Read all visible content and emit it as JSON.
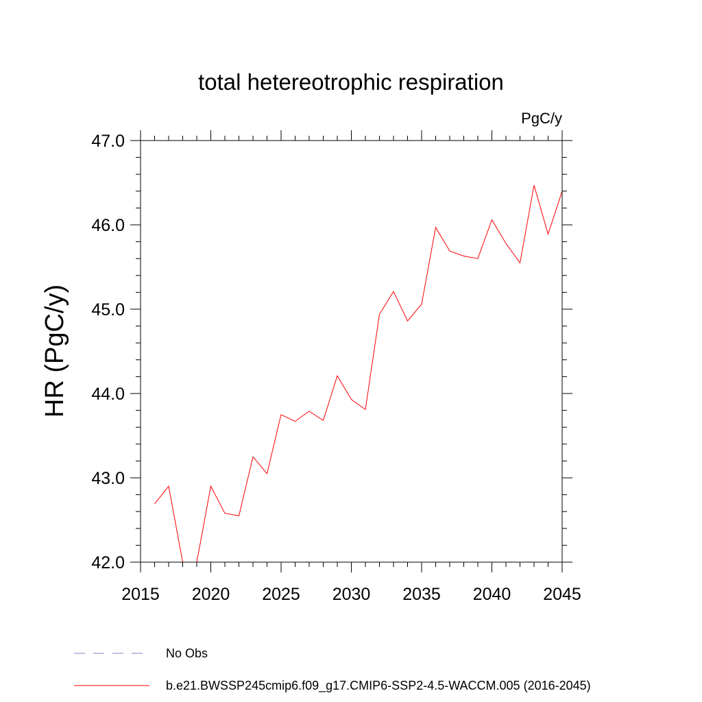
{
  "chart_data": {
    "type": "line",
    "title": "total hetereotrophic respiration",
    "units_label": "PgC/y",
    "xlabel": "",
    "ylabel": "HR  (PgC/y)",
    "xlim": [
      2015,
      2045
    ],
    "ylim": [
      42.0,
      47.0
    ],
    "x_ticks": [
      2015,
      2020,
      2025,
      2030,
      2035,
      2040,
      2045
    ],
    "x_tick_labels": [
      "2015",
      "2020",
      "2025",
      "2030",
      "2035",
      "2040",
      "2045"
    ],
    "y_ticks": [
      42.0,
      43.0,
      44.0,
      45.0,
      46.0,
      47.0
    ],
    "y_tick_labels": [
      "42.0",
      "43.0",
      "44.0",
      "45.0",
      "46.0",
      "47.0"
    ],
    "grid": false,
    "legend_position": "bottom",
    "series": [
      {
        "name": "b.e21.BWSSP245cmip6.f09_g17.CMIP6-SSP2-4.5-WACCM.005 (2016-2045)",
        "color": "#ff0000",
        "style": "solid",
        "x": [
          2016,
          2017,
          2018,
          2019,
          2020,
          2021,
          2022,
          2023,
          2024,
          2025,
          2026,
          2027,
          2028,
          2029,
          2030,
          2031,
          2032,
          2033,
          2034,
          2035,
          2036,
          2037,
          2038,
          2039,
          2040,
          2041,
          2042,
          2043,
          2044,
          2045
        ],
        "y": [
          42.69,
          42.9,
          42.0,
          42.0,
          42.9,
          42.58,
          42.55,
          43.25,
          43.05,
          43.75,
          43.67,
          43.79,
          43.68,
          44.21,
          43.93,
          43.81,
          44.94,
          45.21,
          44.86,
          45.06,
          45.97,
          45.69,
          45.63,
          45.6,
          46.06,
          45.78,
          45.55,
          46.47,
          45.89,
          46.4
        ]
      }
    ],
    "legend": [
      {
        "label": "No Obs",
        "color": "#8080c0",
        "style": "dashed"
      },
      {
        "label": "b.e21.BWSSP245cmip6.f09_g17.CMIP6-SSP2-4.5-WACCM.005 (2016-2045)",
        "color": "#ff0000",
        "style": "solid"
      }
    ]
  }
}
